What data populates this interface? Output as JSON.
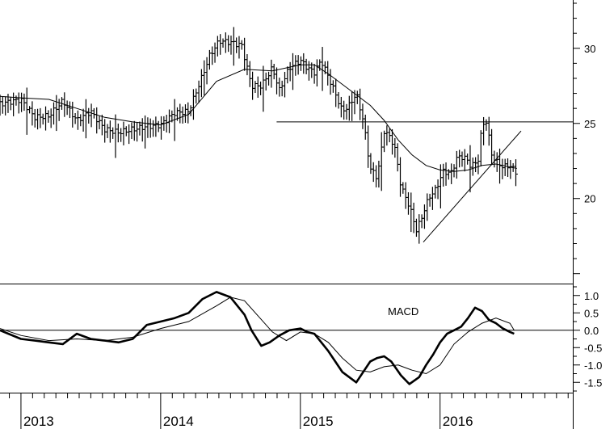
{
  "chart_data": [
    {
      "type": "bar",
      "subtype": "ohlc-weekly-price",
      "ylim": [
        14.5,
        33
      ],
      "yticks": [
        20,
        25,
        30
      ],
      "ytick_labels": [
        "20",
        "25",
        "30"
      ],
      "x_range": [
        2012.85,
        2016.95
      ],
      "years": [
        2013,
        2014,
        2015,
        2016
      ],
      "year_labels": [
        "2013",
        "2014",
        "2015",
        "2016"
      ],
      "series": [
        {
          "role": "close",
          "x": [
            2012.85,
            2013.0,
            2013.1,
            2013.2,
            2013.3,
            2013.4,
            2013.5,
            2013.6,
            2013.7,
            2013.8,
            2013.9,
            2014.0,
            2014.1,
            2014.2,
            2014.3,
            2014.35,
            2014.42,
            2014.5,
            2014.58,
            2014.65,
            2014.72,
            2014.8,
            2014.85,
            2014.92,
            2015.0,
            2015.05,
            2015.1,
            2015.15,
            2015.2,
            2015.25,
            2015.3,
            2015.35,
            2015.4,
            2015.45,
            2015.5,
            2015.55,
            2015.6,
            2015.65,
            2015.68,
            2015.72,
            2015.78,
            2015.83,
            2015.86,
            2015.9,
            2015.93,
            2015.97,
            2016.02,
            2016.08,
            2016.12,
            2016.17,
            2016.22,
            2016.27,
            2016.3,
            2016.33,
            2016.37,
            2016.41,
            2016.45,
            2016.5,
            2016.55
          ],
          "y": [
            26.3,
            26.6,
            25.4,
            25.5,
            26.5,
            25.2,
            25.8,
            24.6,
            24.4,
            24.6,
            24.8,
            24.9,
            25.7,
            25.8,
            28.2,
            29.5,
            30.5,
            30.4,
            30.2,
            27.5,
            27.5,
            28.7,
            27.2,
            28.7,
            29.2,
            28.7,
            28.4,
            29.2,
            28.1,
            27,
            25.8,
            26.2,
            27,
            25.2,
            22,
            21.4,
            24.5,
            24,
            23.2,
            20.8,
            19.5,
            17.9,
            18.5,
            19.6,
            20.2,
            20.6,
            21.8,
            21.7,
            22.7,
            22.8,
            22.2,
            22.4,
            24.8,
            25.2,
            22.9,
            22.4,
            22.1,
            22.2,
            21.7
          ]
        },
        {
          "role": "moving-average",
          "x": [
            2012.85,
            2013.0,
            2013.2,
            2013.4,
            2013.6,
            2013.8,
            2014.0,
            2014.2,
            2014.4,
            2014.6,
            2014.8,
            2015.0,
            2015.1,
            2015.2,
            2015.3,
            2015.4,
            2015.5,
            2015.6,
            2015.7,
            2015.8,
            2015.9,
            2016.0,
            2016.1,
            2016.2,
            2016.3,
            2016.4,
            2016.5,
            2016.55
          ],
          "y": [
            26.8,
            26.7,
            26.6,
            26.0,
            25.4,
            25.1,
            24.9,
            25.6,
            27.8,
            28.6,
            28.5,
            28.9,
            28.9,
            28.3,
            27.6,
            26.9,
            26.2,
            25.2,
            23.9,
            22.9,
            22.2,
            21.9,
            21.8,
            21.9,
            22.2,
            22.3,
            22.1,
            22.0
          ]
        }
      ],
      "annotations": [
        {
          "kind": "horizontal-line",
          "y": 25.1,
          "x_from": 2014.83,
          "x_to": 2016.95
        },
        {
          "kind": "trend-line",
          "x_from": 2015.88,
          "y_from": 17.1,
          "x_to": 2016.58,
          "y_to": 24.5
        }
      ]
    },
    {
      "type": "line",
      "title": "MACD",
      "ylim": [
        -1.75,
        1.25
      ],
      "yticks": [
        1.0,
        0.5,
        0.0,
        -0.5,
        -1.0,
        -1.5
      ],
      "ytick_labels": [
        "1.0",
        "0.5",
        "0.0",
        "-0.5",
        "-1.0",
        "-1.5"
      ],
      "zero_line": 0,
      "series": [
        {
          "role": "macd",
          "x": [
            2012.85,
            2013.0,
            2013.1,
            2013.2,
            2013.3,
            2013.4,
            2013.5,
            2013.6,
            2013.7,
            2013.8,
            2013.9,
            2014.0,
            2014.1,
            2014.2,
            2014.3,
            2014.4,
            2014.5,
            2014.6,
            2014.65,
            2014.72,
            2014.78,
            2014.85,
            2014.92,
            2015.0,
            2015.05,
            2015.1,
            2015.2,
            2015.3,
            2015.4,
            2015.5,
            2015.55,
            2015.6,
            2015.65,
            2015.72,
            2015.78,
            2015.85,
            2015.9,
            2015.95,
            2016.0,
            2016.05,
            2016.1,
            2016.15,
            2016.2,
            2016.25,
            2016.3,
            2016.35,
            2016.4,
            2016.45,
            2016.5,
            2016.53
          ],
          "y": [
            0.0,
            -0.25,
            -0.3,
            -0.35,
            -0.4,
            -0.1,
            -0.25,
            -0.3,
            -0.35,
            -0.25,
            0.15,
            0.25,
            0.35,
            0.5,
            0.9,
            1.1,
            0.95,
            0.45,
            0.0,
            -0.45,
            -0.35,
            -0.15,
            0.0,
            0.05,
            -0.05,
            -0.1,
            -0.6,
            -1.2,
            -1.5,
            -0.9,
            -0.8,
            -0.75,
            -0.9,
            -1.3,
            -1.55,
            -1.35,
            -1.0,
            -0.7,
            -0.35,
            -0.1,
            0.0,
            0.1,
            0.35,
            0.65,
            0.55,
            0.3,
            0.2,
            0.05,
            -0.05,
            -0.1
          ]
        },
        {
          "role": "signal",
          "x": [
            2012.85,
            2013.0,
            2013.2,
            2013.4,
            2013.6,
            2013.8,
            2014.0,
            2014.2,
            2014.4,
            2014.5,
            2014.6,
            2014.7,
            2014.8,
            2014.9,
            2015.0,
            2015.1,
            2015.2,
            2015.3,
            2015.4,
            2015.5,
            2015.6,
            2015.7,
            2015.8,
            2015.9,
            2016.0,
            2016.1,
            2016.2,
            2016.3,
            2016.4,
            2016.5,
            2016.53
          ],
          "y": [
            0.05,
            -0.15,
            -0.3,
            -0.25,
            -0.3,
            -0.2,
            0.05,
            0.25,
            0.7,
            0.95,
            0.85,
            0.4,
            -0.05,
            -0.3,
            -0.05,
            -0.1,
            -0.35,
            -0.8,
            -1.15,
            -1.2,
            -1.05,
            -1.0,
            -1.15,
            -1.25,
            -1.0,
            -0.4,
            -0.05,
            0.2,
            0.35,
            0.2,
            0.0
          ]
        }
      ]
    }
  ]
}
